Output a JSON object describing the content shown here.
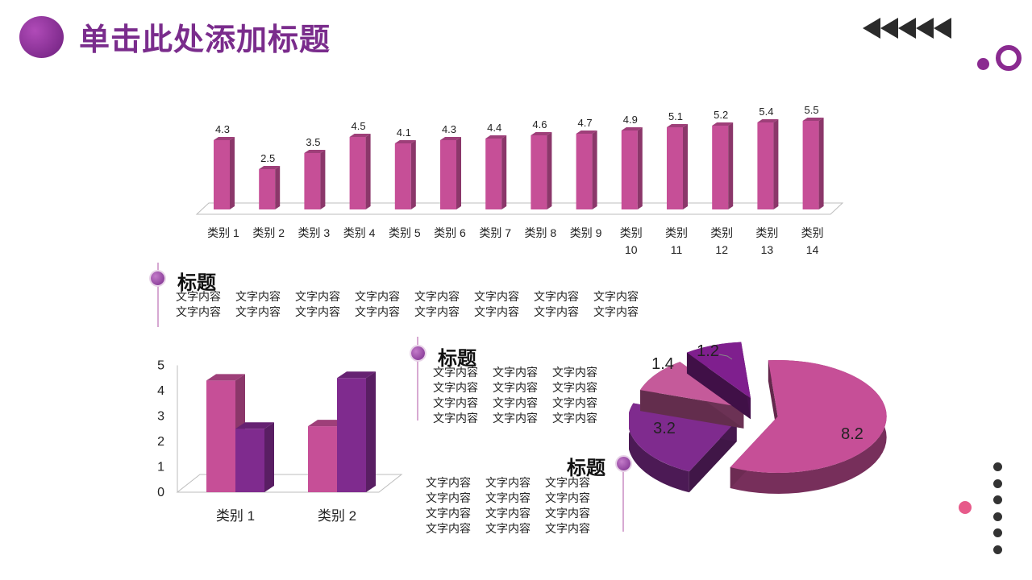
{
  "page": {
    "title": "单击此处添加标题"
  },
  "colors": {
    "pink": "#c64f97",
    "purple": "#7f2b8e",
    "accent": "#e75a8a",
    "dark": "#333333"
  },
  "text_blocks": [
    {
      "heading": "标题",
      "columns": 8,
      "cells": [
        "文字内容",
        "文字内容",
        "文字内容",
        "文字内容",
        "文字内容",
        "文字内容",
        "文字内容",
        "文字内容",
        "文字内容",
        "文字内容",
        "文字内容",
        "文字内容",
        "文字内容",
        "文字内容",
        "文字内容",
        "文字内容"
      ]
    },
    {
      "heading": "标题",
      "columns": 3,
      "cells": [
        "文字内容",
        "文字内容",
        "文字内容",
        "文字内容",
        "文字内容",
        "文字内容",
        "文字内容",
        "文字内容",
        "文字内容",
        "文字内容",
        "文字内容",
        "文字内容"
      ]
    },
    {
      "heading": "标题",
      "columns": 3,
      "cells": [
        "文字内容",
        "文字内容",
        "文字内容",
        "文字内容",
        "文字内容",
        "文字内容",
        "文字内容",
        "文字内容",
        "文字内容",
        "文字内容",
        "文字内容",
        "文字内容"
      ]
    }
  ],
  "chart_data": [
    {
      "type": "bar",
      "categories": [
        "类别 1",
        "类别 2",
        "类别 3",
        "类别 4",
        "类别 5",
        "类别 6",
        "类别 7",
        "类别 8",
        "类别 9",
        "类别 10",
        "类别 11",
        "类别 12",
        "类别 13",
        "类别 14"
      ],
      "values": [
        4.3,
        2.5,
        3.5,
        4.5,
        4.1,
        4.3,
        4.4,
        4.6,
        4.7,
        4.9,
        5.1,
        5.2,
        5.4,
        5.5
      ],
      "data_labels": true,
      "grid": false,
      "ylim": [
        0,
        6
      ]
    },
    {
      "type": "bar",
      "categories": [
        "类别 1",
        "类别 2"
      ],
      "series": [
        {
          "values": [
            4.4,
            2.6
          ]
        },
        {
          "values": [
            2.5,
            4.5
          ]
        }
      ],
      "yticks": [
        "0",
        "1",
        "2",
        "3",
        "4",
        "5"
      ],
      "ylim": [
        0,
        5
      ],
      "grid": false
    },
    {
      "type": "pie",
      "values": [
        8.2,
        3.2,
        1.4,
        1.2
      ],
      "labels": [
        "8.2",
        "3.2",
        "1.4",
        "1.2"
      ],
      "exploded": true
    }
  ]
}
